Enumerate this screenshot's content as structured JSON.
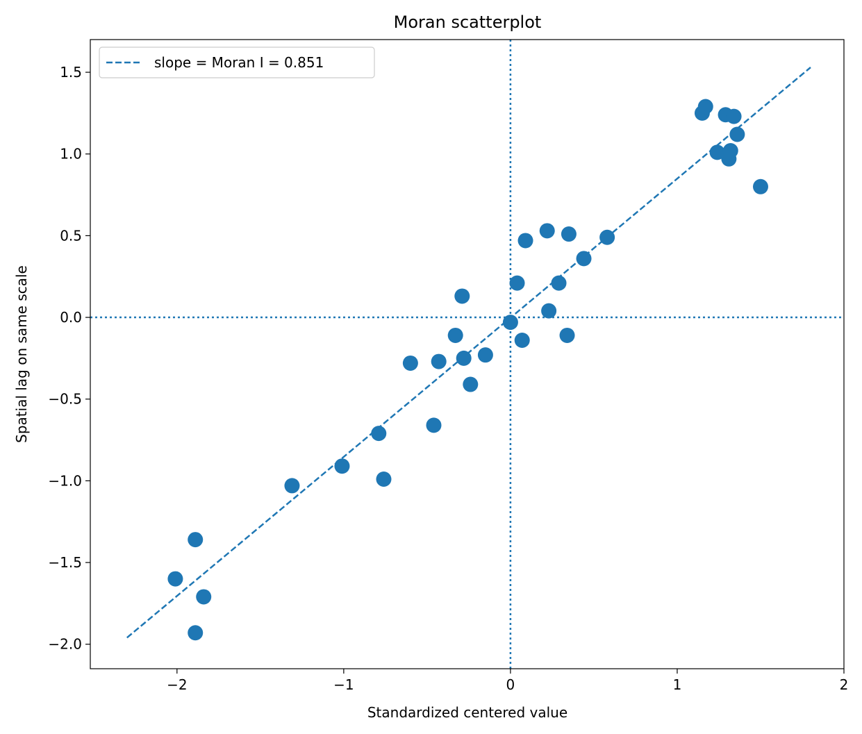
{
  "chart_data": {
    "type": "scatter",
    "title": "Moran scatterplot",
    "xlabel": "Standardized centered value",
    "ylabel": "Spatial lag on same scale",
    "xlim": [
      -2.52,
      2.0
    ],
    "ylim": [
      -2.15,
      1.7
    ],
    "xticks": [
      -2,
      -1,
      0,
      1,
      2
    ],
    "xtick_labels": [
      "−2",
      "−1",
      "0",
      "1",
      "2"
    ],
    "yticks": [
      -2.0,
      -1.5,
      -1.0,
      -0.5,
      0.0,
      0.5,
      1.0,
      1.5
    ],
    "ytick_labels": [
      "−2.0",
      "−1.5",
      "−1.0",
      "−0.5",
      "0.0",
      "0.5",
      "1.0",
      "1.5"
    ],
    "grid": false,
    "legend_position": "upper-left",
    "color": "#1f77b4",
    "points": {
      "x": [
        -2.01,
        -1.89,
        -1.84,
        -1.89,
        -1.31,
        -1.01,
        -0.79,
        -0.76,
        -0.6,
        -0.46,
        -0.43,
        -0.33,
        -0.29,
        -0.28,
        -0.24,
        -0.15,
        0.0,
        0.04,
        0.07,
        0.09,
        0.22,
        0.23,
        0.29,
        0.34,
        0.35,
        0.44,
        0.58,
        1.15,
        1.17,
        1.24,
        1.29,
        1.31,
        1.32,
        1.34,
        1.36,
        1.5
      ],
      "y": [
        -1.6,
        -1.36,
        -1.71,
        -1.93,
        -1.03,
        -0.91,
        -0.71,
        -0.99,
        -0.28,
        -0.66,
        -0.27,
        -0.11,
        0.13,
        -0.25,
        -0.41,
        -0.23,
        -0.03,
        0.21,
        -0.14,
        0.47,
        0.53,
        0.04,
        0.21,
        -0.11,
        0.51,
        0.36,
        0.49,
        1.25,
        1.29,
        1.01,
        1.24,
        0.97,
        1.02,
        1.23,
        1.12,
        0.8
      ]
    },
    "fit_line": {
      "name": "slope = Moran I = 0.851",
      "slope": 0.851,
      "x": [
        -2.3,
        1.8
      ],
      "y": [
        -1.96,
        1.53
      ],
      "style": "dashed"
    },
    "reference_lines": {
      "x": 0,
      "y": 0,
      "style": "dotted"
    }
  }
}
